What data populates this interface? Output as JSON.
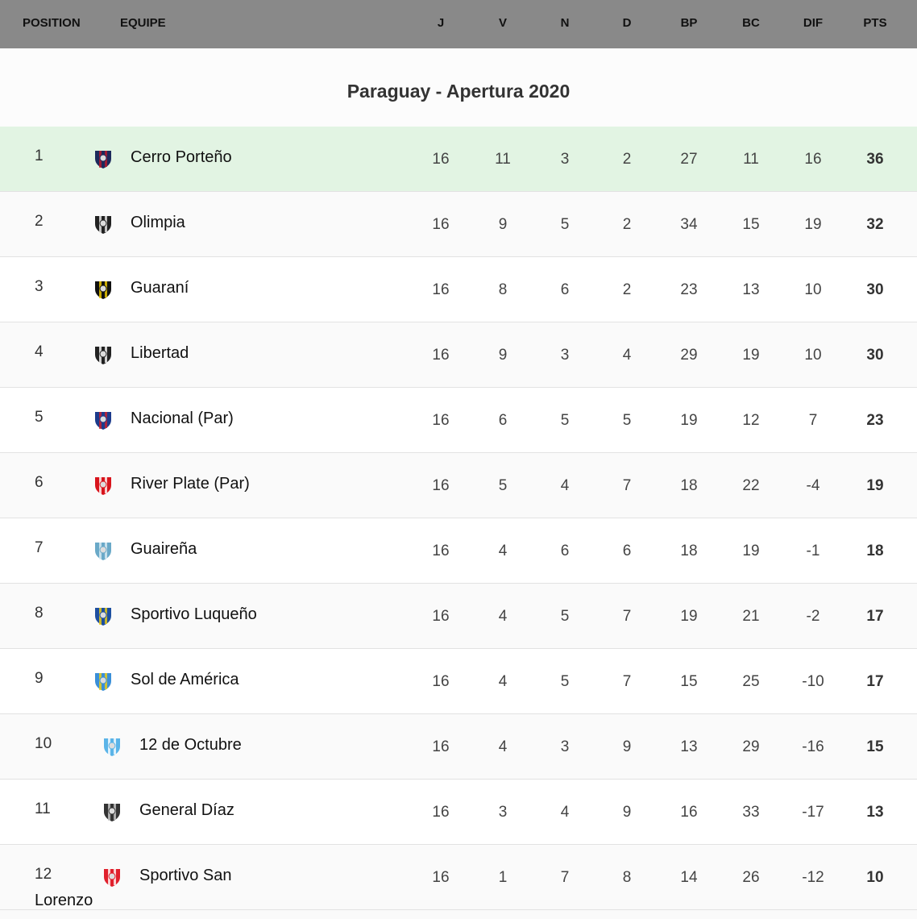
{
  "header": {
    "position": "POSITION",
    "equipe": "EQUIPE",
    "cols": [
      "J",
      "V",
      "N",
      "D",
      "BP",
      "BC",
      "DIF",
      "PTS"
    ]
  },
  "title": "Paraguay - Apertura 2020",
  "highlight_color": "#e2f4e3",
  "rows": [
    {
      "pos": "1",
      "team": "Cerro Porteño",
      "logo": [
        "#1c2a5c",
        "#c0192c"
      ],
      "stats": [
        "16",
        "11",
        "3",
        "2",
        "27",
        "11",
        "16",
        "36"
      ]
    },
    {
      "pos": "2",
      "team": "Olimpia",
      "logo": [
        "#222",
        "#eee"
      ],
      "stats": [
        "16",
        "9",
        "5",
        "2",
        "34",
        "15",
        "19",
        "32"
      ]
    },
    {
      "pos": "3",
      "team": "Guaraní",
      "logo": [
        "#111",
        "#f5d000"
      ],
      "stats": [
        "16",
        "8",
        "6",
        "2",
        "23",
        "13",
        "10",
        "30"
      ]
    },
    {
      "pos": "4",
      "team": "Libertad",
      "logo": [
        "#222",
        "#fff"
      ],
      "stats": [
        "16",
        "9",
        "3",
        "4",
        "29",
        "19",
        "10",
        "30"
      ]
    },
    {
      "pos": "5",
      "team": "Nacional (Par)",
      "logo": [
        "#1c3b8c",
        "#d0202c"
      ],
      "stats": [
        "16",
        "6",
        "5",
        "5",
        "19",
        "12",
        "7",
        "23"
      ]
    },
    {
      "pos": "6",
      "team": "River Plate (Par)",
      "logo": [
        "#d8141c",
        "#fff"
      ],
      "stats": [
        "16",
        "5",
        "4",
        "7",
        "18",
        "22",
        "-4",
        "19"
      ]
    },
    {
      "pos": "7",
      "team": "Guaireña",
      "logo": [
        "#6aa9c8",
        "#dfeef5"
      ],
      "stats": [
        "16",
        "4",
        "6",
        "6",
        "18",
        "19",
        "-1",
        "18"
      ]
    },
    {
      "pos": "8",
      "team": "Sportivo Luqueño",
      "logo": [
        "#1d4fa0",
        "#f4d010"
      ],
      "stats": [
        "16",
        "4",
        "5",
        "7",
        "19",
        "21",
        "-2",
        "17"
      ]
    },
    {
      "pos": "9",
      "team": "Sol de América",
      "logo": [
        "#3a8fd8",
        "#f4d010"
      ],
      "stats": [
        "16",
        "4",
        "5",
        "7",
        "15",
        "25",
        "-10",
        "17"
      ]
    },
    {
      "pos": "10",
      "team": "12 de Octubre",
      "logo": [
        "#5ab4e8",
        "#fff"
      ],
      "stats": [
        "16",
        "4",
        "3",
        "9",
        "13",
        "29",
        "-16",
        "15"
      ]
    },
    {
      "pos": "11",
      "team": "General Díaz",
      "logo": [
        "#333",
        "#ccc"
      ],
      "stats": [
        "16",
        "3",
        "4",
        "9",
        "16",
        "33",
        "-17",
        "13"
      ]
    },
    {
      "pos": "12",
      "team": "Sportivo San",
      "team_cont": "Lorenzo",
      "logo": [
        "#e0202c",
        "#fff"
      ],
      "stats": [
        "16",
        "1",
        "7",
        "8",
        "14",
        "26",
        "-12",
        "10"
      ]
    }
  ]
}
